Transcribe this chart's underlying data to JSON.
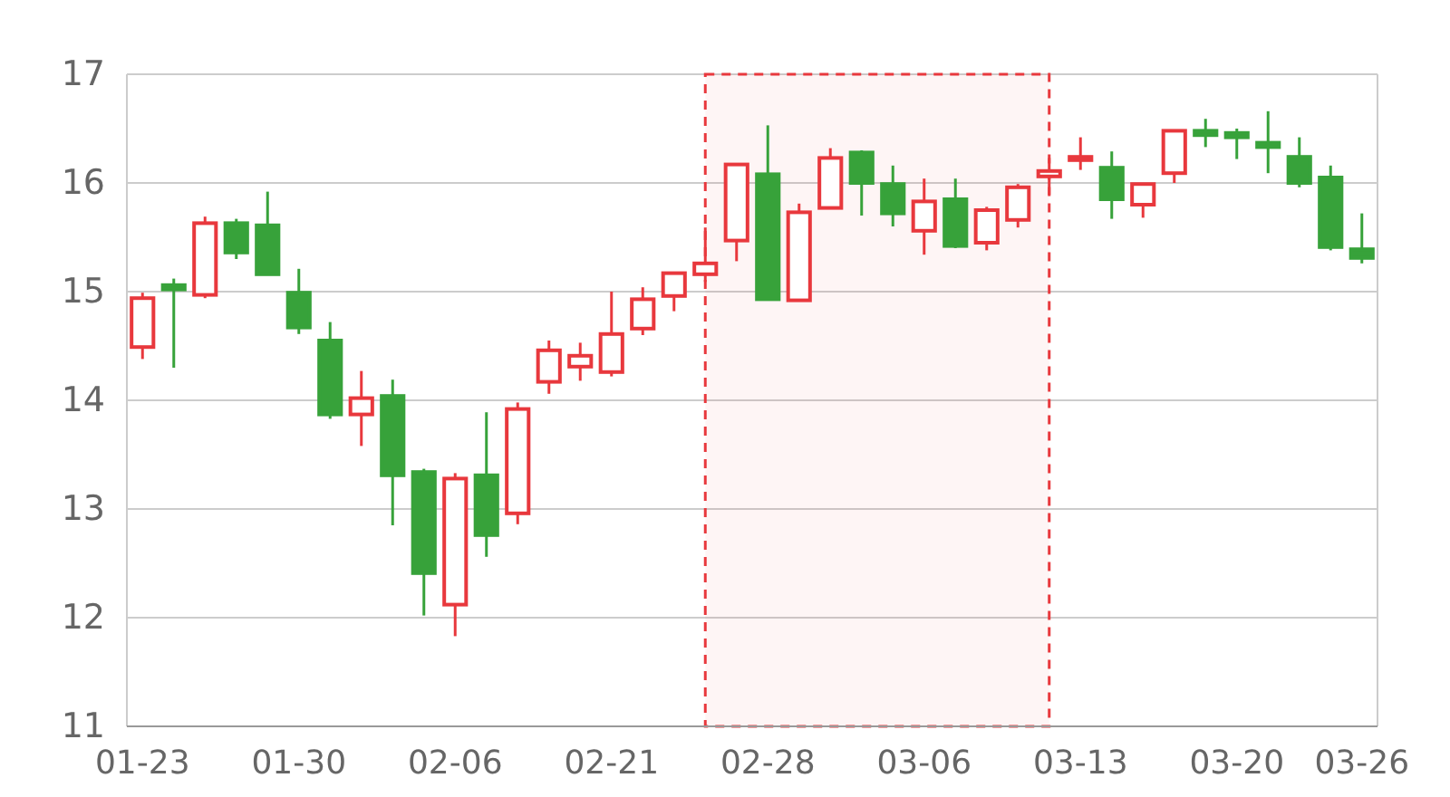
{
  "chart_data": {
    "type": "candlestick",
    "categories": [
      "01-23",
      null,
      null,
      null,
      null,
      "01-30",
      null,
      null,
      null,
      null,
      "02-06",
      null,
      null,
      null,
      null,
      "02-21",
      null,
      null,
      null,
      null,
      "02-28",
      null,
      null,
      null,
      null,
      "03-06",
      null,
      null,
      null,
      null,
      "03-13",
      null,
      null,
      null,
      null,
      "03-20",
      null,
      null,
      null,
      "03-26"
    ],
    "ohlc": [
      [
        14.49,
        14.99,
        14.38,
        14.94
      ],
      [
        15.06,
        15.12,
        14.3,
        15.02
      ],
      [
        14.97,
        15.69,
        14.94,
        15.63
      ],
      [
        15.63,
        15.67,
        15.3,
        15.36
      ],
      [
        15.61,
        15.92,
        15.16,
        15.16
      ],
      [
        14.99,
        15.21,
        14.61,
        14.67
      ],
      [
        14.55,
        14.72,
        13.83,
        13.87
      ],
      [
        13.87,
        14.27,
        13.58,
        14.02
      ],
      [
        14.04,
        14.19,
        12.85,
        13.31
      ],
      [
        13.34,
        13.37,
        12.02,
        12.41
      ],
      [
        12.12,
        13.33,
        11.83,
        13.28
      ],
      [
        13.31,
        13.89,
        12.56,
        12.76
      ],
      [
        12.96,
        13.98,
        12.86,
        13.92
      ],
      [
        14.17,
        14.55,
        14.06,
        14.46
      ],
      [
        14.31,
        14.53,
        14.18,
        14.41
      ],
      [
        14.26,
        15.0,
        14.22,
        14.61
      ],
      [
        14.66,
        15.04,
        14.6,
        14.93
      ],
      [
        14.96,
        15.17,
        14.82,
        15.17
      ],
      [
        15.16,
        15.59,
        15.09,
        15.26
      ],
      [
        15.47,
        16.17,
        15.28,
        16.17
      ],
      [
        16.08,
        16.53,
        14.93,
        14.93
      ],
      [
        14.92,
        15.81,
        14.92,
        15.73
      ],
      [
        15.77,
        16.32,
        15.77,
        16.23
      ],
      [
        16.28,
        16.3,
        15.7,
        16.0
      ],
      [
        15.99,
        16.16,
        15.6,
        15.72
      ],
      [
        15.56,
        16.04,
        15.34,
        15.83
      ],
      [
        15.85,
        16.04,
        15.4,
        15.42
      ],
      [
        15.45,
        15.78,
        15.38,
        15.75
      ],
      [
        15.66,
        15.99,
        15.59,
        15.96
      ],
      [
        16.06,
        16.23,
        15.89,
        16.11
      ],
      [
        16.21,
        16.42,
        16.12,
        16.24
      ],
      [
        16.14,
        16.29,
        15.67,
        15.85
      ],
      [
        15.8,
        15.99,
        15.68,
        15.99
      ],
      [
        16.09,
        16.48,
        16.0,
        16.48
      ],
      [
        16.48,
        16.59,
        16.33,
        16.44
      ],
      [
        16.46,
        16.5,
        16.22,
        16.42
      ],
      [
        16.37,
        16.66,
        16.09,
        16.33
      ],
      [
        16.24,
        16.42,
        15.96,
        16.0
      ],
      [
        16.05,
        16.16,
        15.38,
        15.41
      ],
      [
        15.39,
        15.72,
        15.26,
        15.31
      ]
    ],
    "colors": [
      "#e8383d",
      "#37a23a",
      "#e8383d",
      "#37a23a",
      "#37a23a",
      "#37a23a",
      "#37a23a",
      "#e8383d",
      "#37a23a",
      "#37a23a",
      "#e8383d",
      "#37a23a",
      "#e8383d",
      "#e8383d",
      "#e8383d",
      "#e8383d",
      "#e8383d",
      "#e8383d",
      "#e8383d",
      "#e8383d",
      "#37a23a",
      "#e8383d",
      "#e8383d",
      "#37a23a",
      "#37a23a",
      "#e8383d",
      "#37a23a",
      "#e8383d",
      "#e8383d",
      "#e8383d",
      "#e8383d",
      "#37a23a",
      "#e8383d",
      "#e8383d",
      "#37a23a",
      "#37a23a",
      "#37a23a",
      "#37a23a",
      "#37a23a",
      "#37a23a"
    ],
    "ylim": [
      11,
      17
    ],
    "yticks": [
      11,
      12,
      13,
      14,
      15,
      16,
      17
    ],
    "grid": "y"
  }
}
